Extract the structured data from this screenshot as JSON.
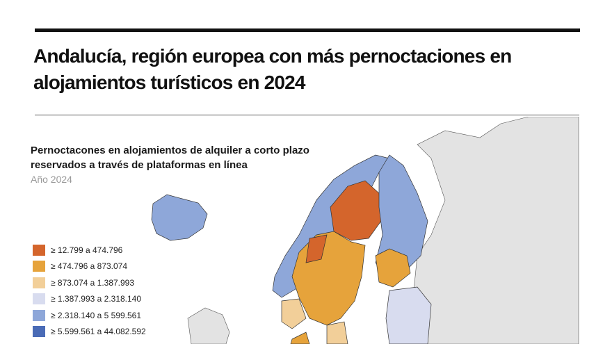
{
  "header": {
    "title": "Andalucía, región europea con más pernoctaciones en alojamientos turísticos en 2024"
  },
  "map": {
    "subtitle": "Pernoctacones en alojamientos de alquiler a corto plazo reservados a través de plataformas en línea",
    "year": "Año 2024",
    "legend": [
      {
        "label": "≥ 12.799 a 474.796",
        "color": "#d4652c"
      },
      {
        "label": "≥ 474.796 a 873.074",
        "color": "#e6a33b"
      },
      {
        "label": "≥ 873.074 a 1.387.993",
        "color": "#f2cf99"
      },
      {
        "label": "≥ 1.387.993 a 2.318.140",
        "color": "#d8dcef"
      },
      {
        "label": "≥ 2.318.140 a 5 599.561",
        "color": "#8ea7d9"
      },
      {
        "label": "≥ 5.599.561 a 44.082.592",
        "color": "#4a6bb6"
      }
    ]
  }
}
